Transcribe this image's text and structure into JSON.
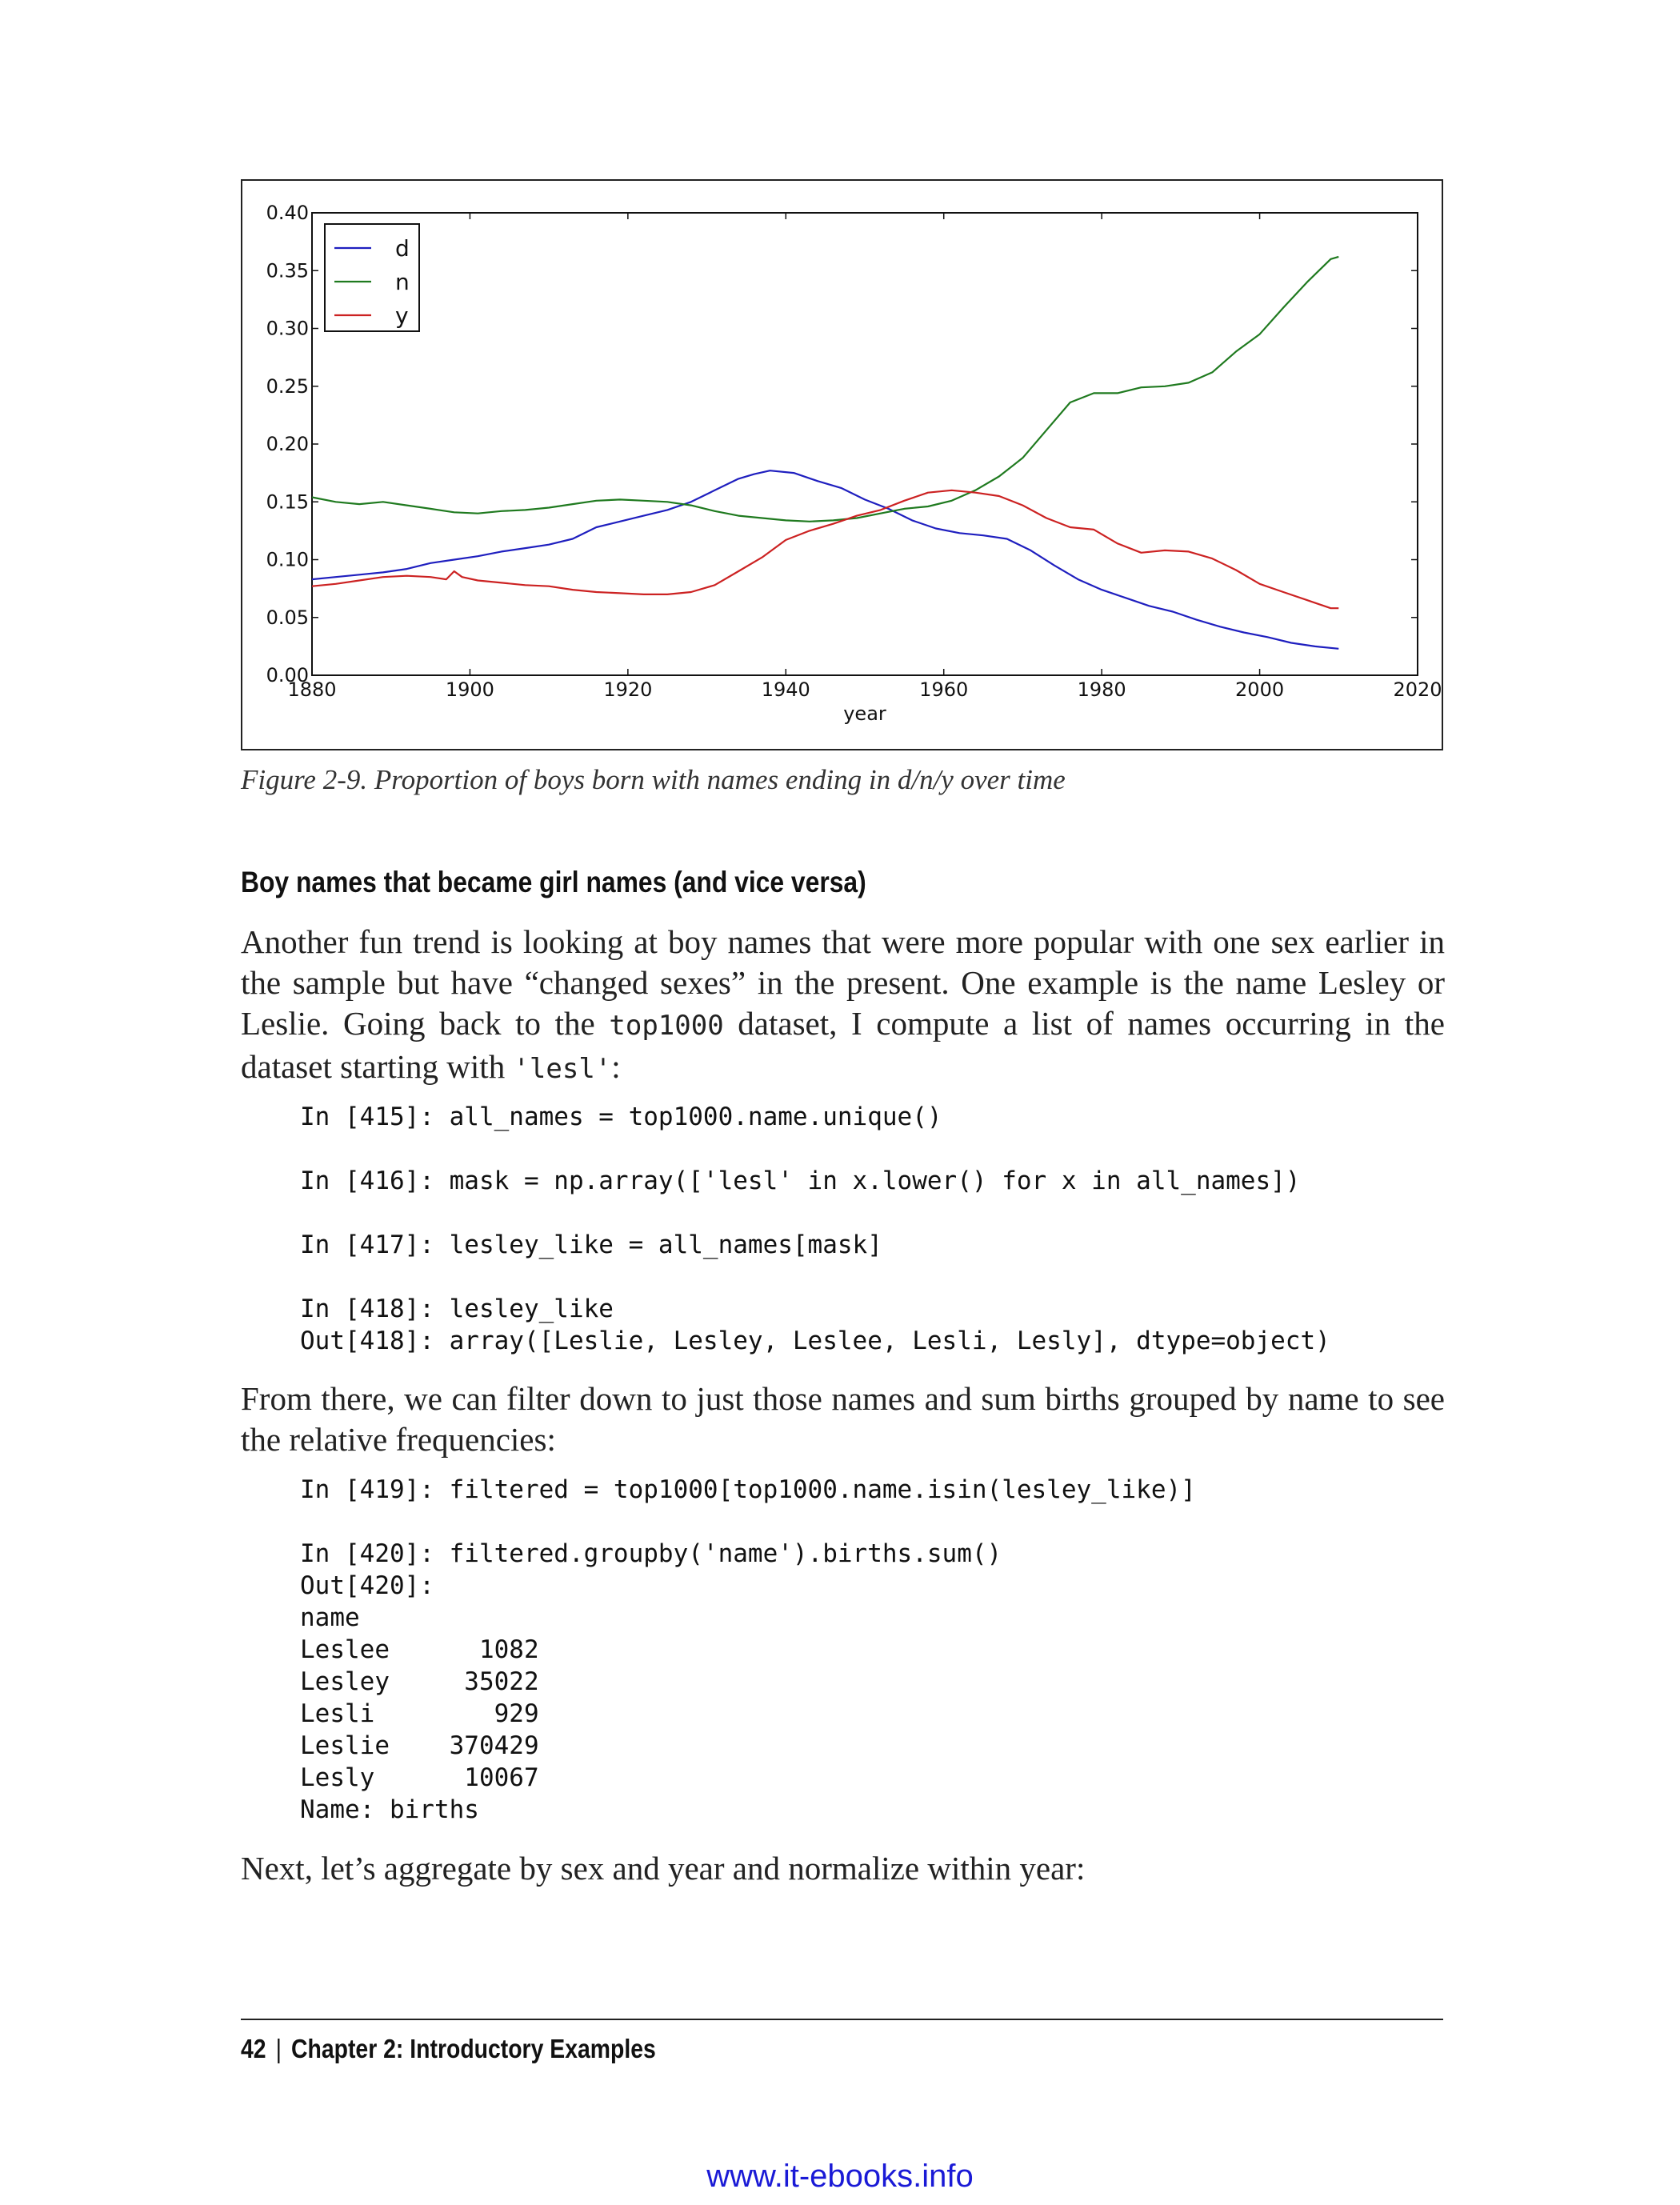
{
  "chart_data": {
    "type": "line",
    "xlabel": "year",
    "ylabel": "",
    "xlim": [
      1880,
      2020
    ],
    "ylim": [
      0.0,
      0.4
    ],
    "xticks": [
      "1880",
      "1900",
      "1920",
      "1940",
      "1960",
      "1980",
      "2000",
      "2020"
    ],
    "yticks": [
      "0.00",
      "0.05",
      "0.10",
      "0.15",
      "0.20",
      "0.25",
      "0.30",
      "0.35",
      "0.40"
    ],
    "legend_position": "top-left",
    "grid": false,
    "series": [
      {
        "name": "d",
        "color": "#1f1fbf",
        "x": [
          1880,
          1883,
          1886,
          1889,
          1892,
          1895,
          1898,
          1901,
          1904,
          1907,
          1910,
          1913,
          1916,
          1919,
          1922,
          1925,
          1928,
          1931,
          1934,
          1936,
          1938,
          1941,
          1944,
          1947,
          1950,
          1953,
          1956,
          1959,
          1962,
          1965,
          1968,
          1971,
          1974,
          1977,
          1980,
          1983,
          1986,
          1989,
          1992,
          1995,
          1998,
          2001,
          2004,
          2007,
          2010
        ],
        "y": [
          0.083,
          0.085,
          0.087,
          0.089,
          0.092,
          0.097,
          0.1,
          0.103,
          0.107,
          0.11,
          0.113,
          0.118,
          0.128,
          0.133,
          0.138,
          0.143,
          0.15,
          0.16,
          0.17,
          0.174,
          0.177,
          0.175,
          0.168,
          0.162,
          0.152,
          0.144,
          0.134,
          0.127,
          0.123,
          0.121,
          0.118,
          0.108,
          0.095,
          0.083,
          0.074,
          0.067,
          0.06,
          0.055,
          0.048,
          0.042,
          0.037,
          0.033,
          0.028,
          0.025,
          0.023
        ]
      },
      {
        "name": "n",
        "color": "#1f7a1f",
        "x": [
          1880,
          1883,
          1886,
          1889,
          1892,
          1895,
          1898,
          1901,
          1904,
          1907,
          1910,
          1913,
          1916,
          1919,
          1922,
          1925,
          1928,
          1931,
          1934,
          1937,
          1940,
          1943,
          1946,
          1949,
          1952,
          1955,
          1958,
          1961,
          1964,
          1967,
          1970,
          1973,
          1976,
          1979,
          1982,
          1985,
          1988,
          1991,
          1994,
          1997,
          2000,
          2003,
          2006,
          2009,
          2010
        ],
        "y": [
          0.154,
          0.15,
          0.148,
          0.15,
          0.147,
          0.144,
          0.141,
          0.14,
          0.142,
          0.143,
          0.145,
          0.148,
          0.151,
          0.152,
          0.151,
          0.15,
          0.147,
          0.142,
          0.138,
          0.136,
          0.134,
          0.133,
          0.134,
          0.136,
          0.14,
          0.144,
          0.146,
          0.151,
          0.16,
          0.172,
          0.188,
          0.212,
          0.236,
          0.244,
          0.244,
          0.249,
          0.25,
          0.253,
          0.262,
          0.28,
          0.295,
          0.318,
          0.34,
          0.36,
          0.362
        ]
      },
      {
        "name": "y",
        "color": "#cc2222",
        "x": [
          1880,
          1883,
          1886,
          1889,
          1892,
          1895,
          1897,
          1898,
          1899,
          1901,
          1904,
          1907,
          1910,
          1913,
          1916,
          1919,
          1922,
          1925,
          1928,
          1931,
          1934,
          1937,
          1940,
          1943,
          1946,
          1949,
          1952,
          1955,
          1958,
          1961,
          1964,
          1967,
          1970,
          1973,
          1976,
          1979,
          1982,
          1985,
          1988,
          1991,
          1994,
          1997,
          2000,
          2003,
          2006,
          2009,
          2010
        ],
        "y": [
          0.077,
          0.079,
          0.082,
          0.085,
          0.086,
          0.085,
          0.083,
          0.09,
          0.085,
          0.082,
          0.08,
          0.078,
          0.077,
          0.074,
          0.072,
          0.071,
          0.07,
          0.07,
          0.072,
          0.078,
          0.09,
          0.102,
          0.117,
          0.125,
          0.131,
          0.138,
          0.143,
          0.151,
          0.158,
          0.16,
          0.158,
          0.155,
          0.147,
          0.136,
          0.128,
          0.126,
          0.114,
          0.106,
          0.108,
          0.107,
          0.101,
          0.091,
          0.079,
          0.072,
          0.065,
          0.058,
          0.058
        ]
      }
    ]
  },
  "caption": "Figure 2-9. Proportion of boys born with names ending in d/n/y over time",
  "section_heading": "Boy names that became girl names (and vice versa)",
  "para1": {
    "pre": "Another fun trend is looking at boy names that were more popular with one sex earlier in the sample but have “changed sexes” in the present. One example is the name Lesley or Leslie. Going back to the ",
    "code1": "top1000",
    "mid": " dataset, I compute a list of names occurring in the dataset starting with ",
    "code2": "'lesl'",
    "post": ":"
  },
  "code_block1": "In [415]: all_names = top1000.name.unique()\n\nIn [416]: mask = np.array(['lesl' in x.lower() for x in all_names])\n\nIn [417]: lesley_like = all_names[mask]\n\nIn [418]: lesley_like\nOut[418]: array([Leslie, Lesley, Leslee, Lesli, Lesly], dtype=object)",
  "para2": "From there, we can filter down to just those names and sum births grouped by name to see the relative frequencies:",
  "code_block2": "In [419]: filtered = top1000[top1000.name.isin(lesley_like)]\n\nIn [420]: filtered.groupby('name').births.sum()\nOut[420]:\nname\nLeslee      1082\nLesley     35022\nLesli        929\nLeslie    370429\nLesly      10067\nName: births",
  "para3": "Next, let’s aggregate by sex and year and normalize within year:",
  "footer": {
    "page_number": "42",
    "separator": "|",
    "chapter": "Chapter 2: Introductory Examples"
  },
  "watermark": "www.it-ebooks.info"
}
